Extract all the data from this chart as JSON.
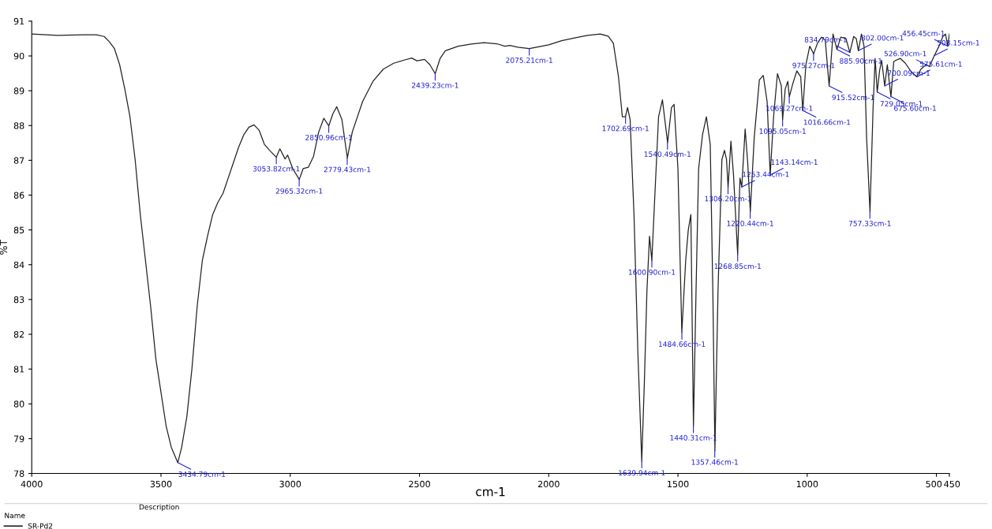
{
  "chart_data": {
    "type": "line",
    "xlabel": "cm-1",
    "ylabel": "%T",
    "xlim": [
      4000,
      450
    ],
    "xticks": [
      4000,
      3500,
      3000,
      2500,
      2000,
      1500,
      1000,
      500,
      450
    ],
    "ylim": [
      78,
      91
    ],
    "yticks": [
      78,
      79,
      80,
      81,
      82,
      83,
      84,
      85,
      86,
      87,
      88,
      89,
      90,
      91
    ],
    "grid": false,
    "legend": "bottom left",
    "legend_title": "Name",
    "marker": "none",
    "line_style": "solid",
    "series": [
      {
        "name": "SR-Pd2",
        "color": "#222222",
        "x": [
          4000,
          3900,
          3800,
          3750,
          3720,
          3700,
          3680,
          3660,
          3640,
          3620,
          3600,
          3580,
          3560,
          3540,
          3520,
          3500,
          3480,
          3460,
          3435,
          3420,
          3400,
          3380,
          3360,
          3340,
          3320,
          3300,
          3280,
          3260,
          3240,
          3220,
          3200,
          3180,
          3160,
          3140,
          3120,
          3100,
          3080,
          3054,
          3040,
          3020,
          3010,
          2990,
          2965,
          2950,
          2930,
          2910,
          2890,
          2870,
          2851,
          2835,
          2820,
          2800,
          2779,
          2760,
          2720,
          2680,
          2640,
          2600,
          2560,
          2530,
          2510,
          2480,
          2460,
          2439,
          2420,
          2400,
          2350,
          2300,
          2250,
          2200,
          2170,
          2150,
          2120,
          2075,
          2000,
          1950,
          1900,
          1850,
          1800,
          1770,
          1750,
          1730,
          1715,
          1703,
          1695,
          1685,
          1670,
          1655,
          1640,
          1630,
          1620,
          1610,
          1601,
          1590,
          1575,
          1560,
          1540,
          1525,
          1515,
          1500,
          1485,
          1470,
          1460,
          1450,
          1440,
          1430,
          1420,
          1405,
          1390,
          1375,
          1365,
          1357,
          1345,
          1330,
          1320,
          1312,
          1306,
          1295,
          1285,
          1269,
          1260,
          1253,
          1240,
          1230,
          1220,
          1205,
          1185,
          1170,
          1155,
          1143,
          1130,
          1115,
          1100,
          1095,
          1085,
          1075,
          1069,
          1055,
          1040,
          1025,
          1017,
          1005,
          990,
          975,
          960,
          945,
          930,
          915,
          900,
          885,
          870,
          850,
          835,
          820,
          810,
          802,
          790,
          780,
          770,
          757,
          745,
          737,
          729,
          720,
          712,
          700,
          690,
          676,
          665,
          655,
          640,
          620,
          600,
          576,
          560,
          540,
          527,
          508,
          490,
          475,
          465,
          456,
          450
        ],
        "values": [
          90.63,
          90.59,
          90.61,
          90.61,
          90.56,
          90.41,
          90.21,
          89.75,
          89.05,
          88.25,
          87.02,
          85.44,
          84.12,
          82.8,
          81.3,
          80.33,
          79.36,
          78.75,
          78.31,
          78.75,
          79.63,
          81.03,
          82.8,
          84.12,
          84.82,
          85.44,
          85.79,
          86.05,
          86.49,
          86.93,
          87.37,
          87.73,
          87.95,
          88.02,
          87.86,
          87.46,
          87.29,
          87.09,
          87.33,
          87.04,
          87.15,
          86.76,
          86.45,
          86.76,
          86.8,
          87.11,
          87.81,
          88.21,
          87.99,
          88.34,
          88.54,
          88.17,
          87.07,
          87.81,
          88.69,
          89.27,
          89.62,
          89.79,
          89.88,
          89.94,
          89.86,
          89.9,
          89.75,
          89.49,
          89.93,
          90.15,
          90.28,
          90.34,
          90.38,
          90.35,
          90.28,
          90.3,
          90.25,
          90.21,
          90.32,
          90.44,
          90.52,
          90.59,
          90.63,
          90.57,
          90.37,
          89.4,
          88.25,
          88.25,
          88.52,
          88.17,
          85.44,
          81.48,
          78.35,
          80.6,
          83.24,
          84.82,
          84.12,
          85.88,
          88.25,
          88.74,
          87.51,
          88.52,
          88.61,
          86.76,
          82.05,
          84.12,
          85.0,
          85.44,
          79.36,
          83.24,
          86.76,
          87.73,
          88.25,
          87.46,
          83.24,
          78.66,
          83.24,
          87.02,
          87.29,
          87.02,
          86.23,
          87.55,
          86.58,
          84.29,
          86.49,
          86.23,
          87.9,
          86.93,
          85.52,
          87.64,
          89.31,
          89.44,
          88.69,
          86.58,
          88.25,
          89.49,
          89.14,
          88.17,
          89.05,
          89.27,
          88.83,
          89.22,
          89.57,
          89.4,
          88.43,
          89.75,
          90.28,
          90.06,
          90.37,
          90.54,
          90.45,
          89.14,
          90.63,
          90.19,
          90.54,
          90.5,
          90.1,
          90.56,
          90.5,
          90.15,
          90.63,
          90.28,
          87.64,
          85.52,
          88.52,
          89.93,
          88.96,
          89.57,
          89.88,
          89.14,
          89.75,
          88.83,
          89.84,
          89.88,
          89.93,
          89.79,
          89.57,
          89.4,
          89.62,
          89.75,
          89.7,
          90.01,
          90.28,
          90.56,
          90.63,
          90.28,
          90.63
        ]
      }
    ],
    "annotations": [
      {
        "text": "3434.79cm-1",
        "x": 3434.79,
        "y": 78.31
      },
      {
        "text": "3053.82cm-1",
        "x": 3053.82,
        "y": 87.09
      },
      {
        "text": "2965.32cm-1",
        "x": 2965.32,
        "y": 86.45
      },
      {
        "text": "2850.96cm-1",
        "x": 2850.96,
        "y": 87.99
      },
      {
        "text": "2779.43cm-1",
        "x": 2779.43,
        "y": 87.07
      },
      {
        "text": "2439.23cm-1",
        "x": 2439.23,
        "y": 89.49
      },
      {
        "text": "2075.21cm-1",
        "x": 2075.21,
        "y": 90.21
      },
      {
        "text": "1702.69cm-1",
        "x": 1702.69,
        "y": 88.25
      },
      {
        "text": "1639.94cm-1",
        "x": 1639.94,
        "y": 78.35
      },
      {
        "text": "1600.90cm-1",
        "x": 1600.9,
        "y": 84.12
      },
      {
        "text": "1540.49cm-1",
        "x": 1540.49,
        "y": 87.51
      },
      {
        "text": "1484.66cm-1",
        "x": 1484.66,
        "y": 82.05
      },
      {
        "text": "1440.31cm-1",
        "x": 1440.31,
        "y": 79.36
      },
      {
        "text": "1357.46cm-1",
        "x": 1357.46,
        "y": 78.66
      },
      {
        "text": "1306.20cm-1",
        "x": 1306.2,
        "y": 86.23
      },
      {
        "text": "1268.85cm-1",
        "x": 1268.85,
        "y": 84.29
      },
      {
        "text": "1253.44cm-1",
        "x": 1253.44,
        "y": 86.23
      },
      {
        "text": "1220.44cm-1",
        "x": 1220.44,
        "y": 85.52
      },
      {
        "text": "1143.14cm-1",
        "x": 1143.14,
        "y": 86.58
      },
      {
        "text": "1095.05cm-1",
        "x": 1095.05,
        "y": 88.17
      },
      {
        "text": "1069.27cm-1",
        "x": 1069.27,
        "y": 88.83
      },
      {
        "text": "1016.66cm-1",
        "x": 1016.66,
        "y": 88.43
      },
      {
        "text": "975.27cm-1",
        "x": 975.27,
        "y": 90.06
      },
      {
        "text": "915.52cm-1",
        "x": 915.52,
        "y": 89.14
      },
      {
        "text": "885.90cm-1",
        "x": 885.9,
        "y": 90.19
      },
      {
        "text": "834.79cm-1",
        "x": 834.79,
        "y": 90.1
      },
      {
        "text": "802.00cm-1",
        "x": 802.0,
        "y": 90.15
      },
      {
        "text": "757.33cm-1",
        "x": 757.33,
        "y": 85.52
      },
      {
        "text": "729.05cm-1",
        "x": 729.05,
        "y": 88.96
      },
      {
        "text": "700.09cm-1",
        "x": 700.09,
        "y": 89.14
      },
      {
        "text": "675.60cm-1",
        "x": 675.6,
        "y": 88.83
      },
      {
        "text": "575.61cm-1",
        "x": 575.61,
        "y": 89.4
      },
      {
        "text": "526.90cm-1",
        "x": 526.9,
        "y": 89.7
      },
      {
        "text": "508.15cm-1",
        "x": 508.15,
        "y": 90.01
      },
      {
        "text": "456.45cm-1",
        "x": 456.45,
        "y": 90.28
      },
      "Description"
    ]
  }
}
